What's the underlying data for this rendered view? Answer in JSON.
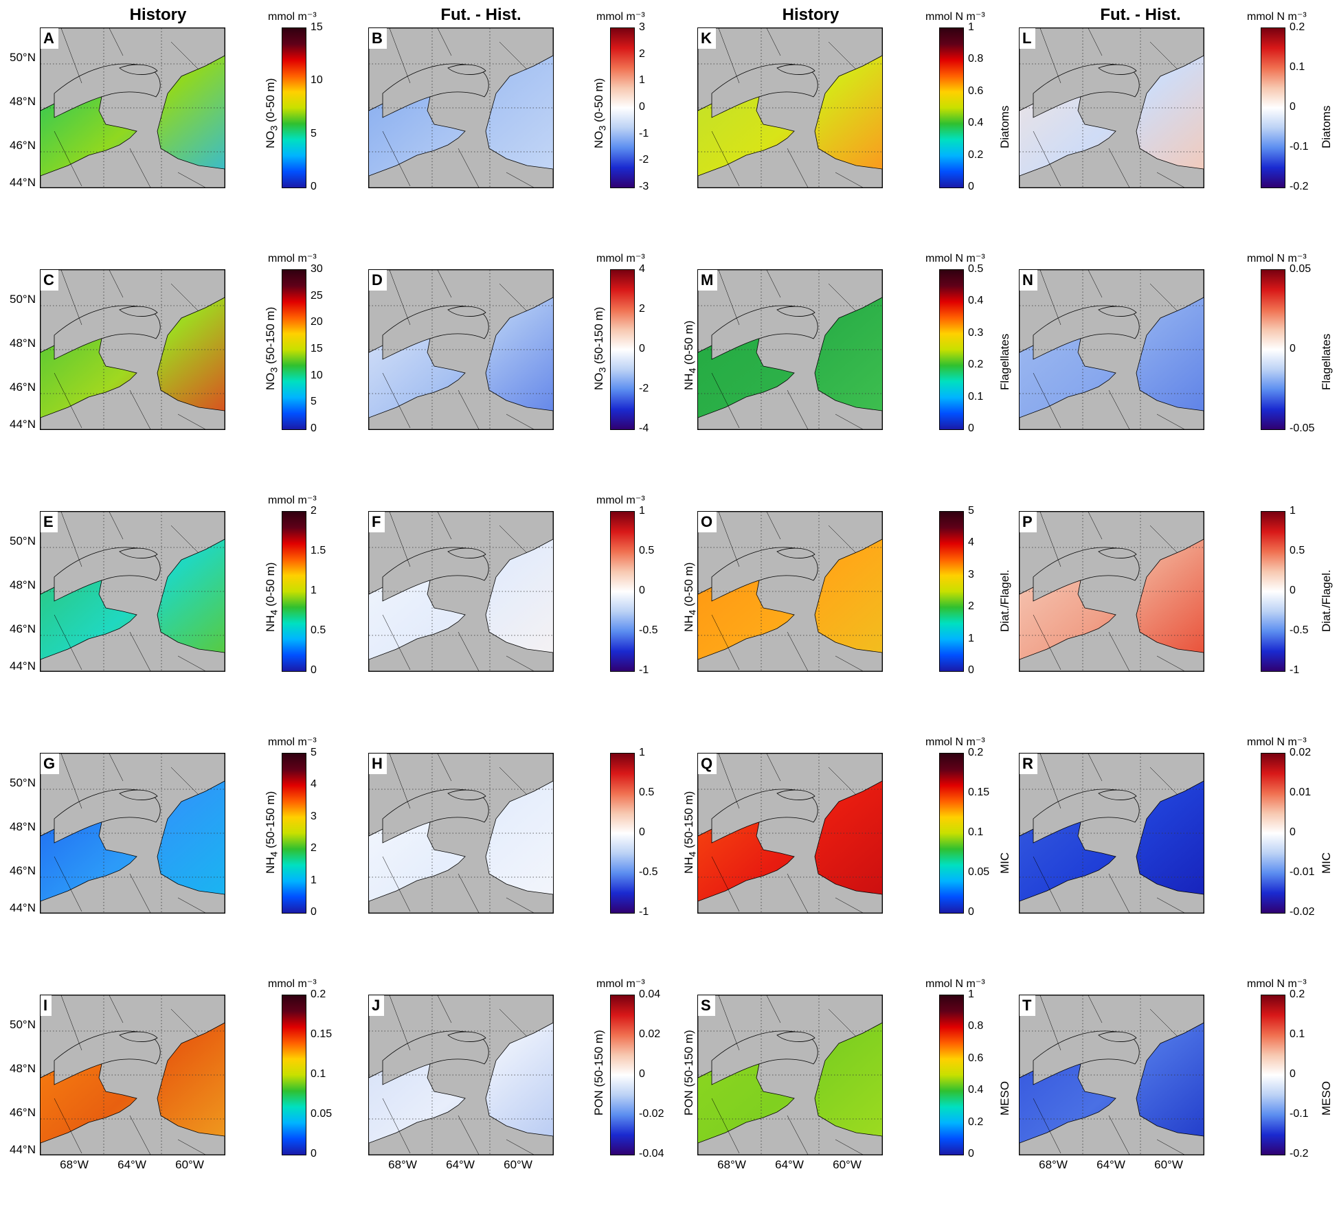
{
  "column_titles": [
    "History",
    "Fut. - Hist.",
    "History",
    "Fut. - Hist."
  ],
  "lat_labels": [
    "50°N",
    "48°N",
    "46°N",
    "44°N"
  ],
  "lon_labels": [
    "68°W",
    "64°W",
    "60°W"
  ],
  "colormaps": {
    "jet": [
      "#1a1aa8",
      "#0050ff",
      "#00b4ff",
      "#00e0c0",
      "#30c030",
      "#c8e000",
      "#ffd000",
      "#ff6000",
      "#e00000",
      "#600018",
      "#300010"
    ],
    "diverging": [
      "#300070",
      "#1a2ad0",
      "#5c8ef0",
      "#bcd2f5",
      "#ffffff",
      "#f7c8b0",
      "#f07050",
      "#d81818",
      "#780010"
    ]
  },
  "panels": [
    {
      "letter": "A",
      "unit": "mmol m⁻³",
      "label_main": "NO",
      "label_sub": "3",
      "label_rest": " (0-50 m)",
      "label_side": "left",
      "ticks": [
        "15",
        "10",
        "5",
        "0"
      ],
      "cmap": "jet",
      "water": [
        "#00c070",
        "#90d820",
        "#30b8e0"
      ]
    },
    {
      "letter": "B",
      "unit": "mmol m⁻³",
      "label_main": "NO",
      "label_sub": "3",
      "label_rest": " (0-50 m)",
      "label_side": "left",
      "ticks": [
        "3",
        "2",
        "1",
        "0",
        "-1",
        "-2",
        "-3"
      ],
      "cmap": "diverging",
      "water": [
        "#7aa4ee",
        "#a9c4f3",
        "#c6d8f6"
      ]
    },
    {
      "letter": "K",
      "unit": "mmol N m⁻³",
      "label_main": "Diatoms",
      "label_sub": "",
      "label_rest": "",
      "label_side": "right",
      "ticks": [
        "1",
        "0.8",
        "0.6",
        "0.4",
        "0.2",
        "0"
      ],
      "cmap": "jet",
      "water": [
        "#b8e030",
        "#d8e418",
        "#ff9020"
      ]
    },
    {
      "letter": "L",
      "unit": "mmol N m⁻³",
      "label_main": "Diatoms",
      "label_sub": "",
      "label_rest": "",
      "label_side": "right",
      "ticks": [
        "0.2",
        "0.1",
        "0",
        "-0.1",
        "-0.2"
      ],
      "cmap": "diverging",
      "water": [
        "#f8e6dc",
        "#cfdcf6",
        "#f6c8b4"
      ]
    },
    {
      "letter": "C",
      "unit": "mmol m⁻³",
      "label_main": "NO",
      "label_sub": "3",
      "label_rest": " (50-150 m)",
      "label_side": "left",
      "ticks": [
        "30",
        "25",
        "20",
        "15",
        "10",
        "5",
        "0"
      ],
      "cmap": "jet",
      "water": [
        "#30c040",
        "#a0d820",
        "#e04020"
      ]
    },
    {
      "letter": "D",
      "unit": "mmol m⁻³",
      "label_main": "NO",
      "label_sub": "3",
      "label_rest": " (50-150 m)",
      "label_side": "left",
      "ticks": [
        "4",
        "2",
        "0",
        "-2",
        "-4"
      ],
      "cmap": "diverging",
      "water": [
        "#e8eefa",
        "#a8c2f2",
        "#5c80e8"
      ]
    },
    {
      "letter": "M",
      "unit": "mmol N m⁻³",
      "label_main": "Flagellates",
      "label_sub": "",
      "label_rest": "",
      "label_side": "right",
      "ticks": [
        "0.5",
        "0.4",
        "0.3",
        "0.2",
        "0.1",
        "0"
      ],
      "cmap": "jet",
      "water": [
        "#20a840",
        "#2cb048",
        "#40c050"
      ]
    },
    {
      "letter": "N",
      "unit": "mmol N m⁻³",
      "label_main": "Flagellates",
      "label_sub": "",
      "label_rest": "",
      "label_side": "right",
      "ticks": [
        "0.05",
        "0",
        "-0.05"
      ],
      "cmap": "diverging",
      "water": [
        "#a6c0f0",
        "#88a8ee",
        "#5a7ee6"
      ]
    },
    {
      "letter": "E",
      "unit": "mmol m⁻³",
      "label_main": "NH",
      "label_sub": "4",
      "label_rest": " (0-50 m)",
      "label_side": "left",
      "ticks": [
        "2",
        "1.5",
        "1",
        "0.5",
        "0"
      ],
      "cmap": "jet",
      "water": [
        "#30c060",
        "#20d8c0",
        "#60c830"
      ]
    },
    {
      "letter": "F",
      "unit": "mmol m⁻³",
      "label_main": "",
      "label_sub": "",
      "label_rest": "",
      "label_side": "left",
      "ticks": [
        "1",
        "0.5",
        "0",
        "-0.5",
        "-1"
      ],
      "cmap": "diverging",
      "water": [
        "#f4f8fe",
        "#e4ecfb",
        "#f6f2f2"
      ]
    },
    {
      "letter": "O",
      "unit": "",
      "label_main": "Diat./Flagel.",
      "label_sub": "",
      "label_rest": "",
      "label_side": "right",
      "ticks": [
        "5",
        "4",
        "3",
        "2",
        "1",
        "0"
      ],
      "cmap": "jet",
      "water": [
        "#ff9010",
        "#ffa818",
        "#f0c020"
      ]
    },
    {
      "letter": "P",
      "unit": "",
      "label_main": "Diat./Flagel.",
      "label_sub": "",
      "label_rest": "",
      "label_side": "right",
      "ticks": [
        "1",
        "0.5",
        "0",
        "-0.5",
        "-1"
      ],
      "cmap": "diverging",
      "water": [
        "#f8d8c8",
        "#f0a088",
        "#e84830"
      ]
    },
    {
      "letter": "G",
      "unit": "mmol m⁻³",
      "label_main": "NH",
      "label_sub": "4",
      "label_rest": " (50-150 m)",
      "label_side": "left",
      "ticks": [
        "5",
        "4",
        "3",
        "2",
        "1",
        "0"
      ],
      "cmap": "jet",
      "water": [
        "#1c58f0",
        "#2c9af8",
        "#18b8f0"
      ]
    },
    {
      "letter": "H",
      "unit": "",
      "label_main": "",
      "label_sub": "",
      "label_rest": "",
      "label_side": "left",
      "ticks": [
        "1",
        "0.5",
        "0",
        "-0.5",
        "-1"
      ],
      "cmap": "diverging",
      "water": [
        "#f8fafe",
        "#e6eefc",
        "#f4f6fb"
      ]
    },
    {
      "letter": "Q",
      "unit": "mmol N m⁻³",
      "label_main": "MIC",
      "label_sub": "",
      "label_rest": "",
      "label_side": "right",
      "ticks": [
        "0.2",
        "0.15",
        "0.1",
        "0.05",
        "0"
      ],
      "cmap": "jet",
      "water": [
        "#ff5a10",
        "#e81c10",
        "#c80e10"
      ]
    },
    {
      "letter": "R",
      "unit": "mmol N m⁻³",
      "label_main": "MIC",
      "label_sub": "",
      "label_rest": "",
      "label_side": "right",
      "ticks": [
        "0.02",
        "0.01",
        "0",
        "-0.01",
        "-0.02"
      ],
      "cmap": "diverging",
      "water": [
        "#3c64e0",
        "#2040d8",
        "#1620b8"
      ]
    },
    {
      "letter": "I",
      "unit": "mmol m⁻³",
      "label_main": "",
      "label_sub": "",
      "label_rest": "",
      "label_side": "left",
      "ticks": [
        "0.2",
        "0.15",
        "0.1",
        "0.05",
        "0"
      ],
      "cmap": "jet",
      "water": [
        "#ff8c10",
        "#e86010",
        "#f0a020"
      ]
    },
    {
      "letter": "J",
      "unit": "mmol m⁻³",
      "label_main": "PON (50-150 m)",
      "label_sub": "",
      "label_rest": "",
      "label_side": "left",
      "ticks": [
        "0.04",
        "0.02",
        "0",
        "-0.02",
        "-0.04"
      ],
      "cmap": "diverging",
      "water": [
        "#cfdcf6",
        "#e8eefb",
        "#b4c8f2"
      ]
    },
    {
      "letter": "S",
      "unit": "mmol N m⁻³",
      "label_main": "MESO",
      "label_sub": "",
      "label_rest": "",
      "label_side": "right",
      "ticks": [
        "1",
        "0.8",
        "0.6",
        "0.4",
        "0.2",
        "0"
      ],
      "cmap": "jet",
      "water": [
        "#90d820",
        "#80d020",
        "#a0dc20"
      ]
    },
    {
      "letter": "T",
      "unit": "mmol N m⁻³",
      "label_main": "MESO",
      "label_sub": "",
      "label_rest": "",
      "label_side": "right",
      "ticks": [
        "0.2",
        "0.1",
        "0",
        "-0.1",
        "-0.2"
      ],
      "cmap": "diverging",
      "water": [
        "#2c4cdc",
        "#4a70e4",
        "#1e38c8"
      ]
    }
  ],
  "between_labels": [
    {
      "after_col": 1,
      "row": 1,
      "label_main": "NH",
      "label_sub": "4",
      "label_rest": " (0-50 m)"
    },
    {
      "after_col": 1,
      "row": 2,
      "label_main": "NH",
      "label_sub": "4",
      "label_rest": " (0-50 m)"
    },
    {
      "after_col": 1,
      "row": 3,
      "label_main": "NH",
      "label_sub": "4",
      "label_rest": " (50-150 m)"
    },
    {
      "after_col": 1,
      "row": 4,
      "label_main": "PON (50-150 m)",
      "label_sub": "",
      "label_rest": ""
    }
  ]
}
